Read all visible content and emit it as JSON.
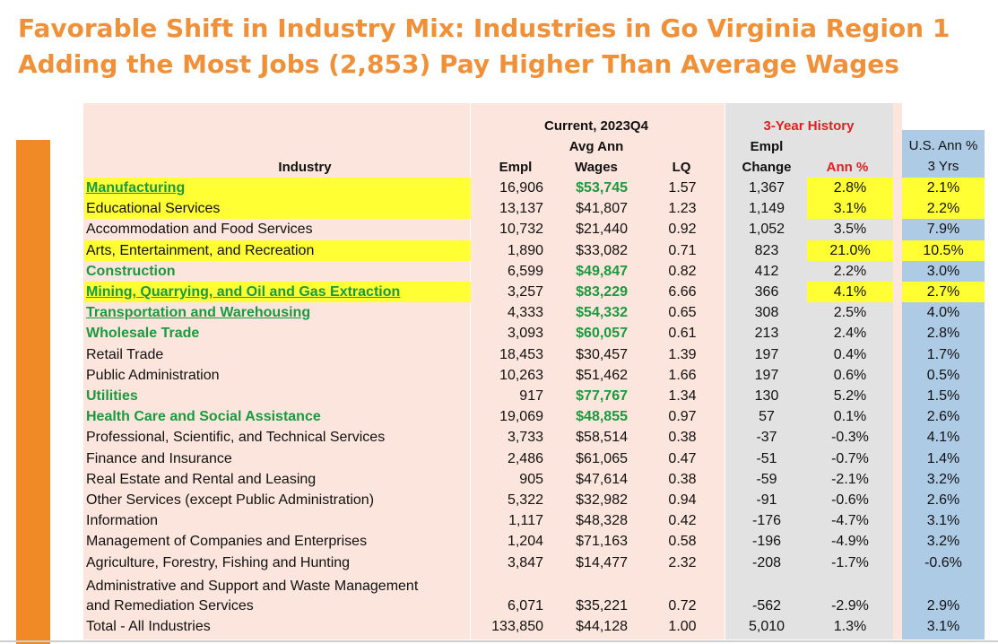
{
  "title": {
    "line1": "Favorable Shift in Industry Mix: Industries in Go Virginia Region 1",
    "line2": "Adding the Most Jobs (2,853) Pay Higher Than Average Wages"
  },
  "headers": {
    "current": "Current, 2023Q4",
    "history": "3-Year History",
    "industry": "Industry",
    "empl": "Empl",
    "avg_ann_1": "Avg Ann",
    "avg_ann_2": "Wages",
    "lq": "LQ",
    "empl_change_1": "Empl",
    "empl_change_2": "Change",
    "ann_pct": "Ann %",
    "us_1": "U.S. Ann %",
    "us_2": "3 Yrs"
  },
  "colors": {
    "title": "#f0913a",
    "highlight": "#ffff33",
    "green": "#1a9a3f",
    "red": "#e02020"
  },
  "rows": [
    {
      "industry": "Manufacturing",
      "empl": "16,906",
      "wages": "$53,745",
      "lq": "1.57",
      "change": "1,367",
      "ann": "2.8%",
      "us": "2.1%",
      "green_name": true,
      "underline": true,
      "hl_name": true,
      "green_wage": true,
      "hl_ann": true
    },
    {
      "industry": "Educational Services",
      "empl": "13,137",
      "wages": "$41,807",
      "lq": "1.23",
      "change": "1,149",
      "ann": "3.1%",
      "us": "2.2%",
      "green_name": false,
      "underline": false,
      "hl_name": true,
      "green_wage": false,
      "hl_ann": true
    },
    {
      "industry": "Accommodation and Food Services",
      "empl": "10,732",
      "wages": "$21,440",
      "lq": "0.92",
      "change": "1,052",
      "ann": "3.5%",
      "us": "7.9%",
      "green_name": false,
      "underline": false,
      "hl_name": false,
      "green_wage": false,
      "hl_ann": false
    },
    {
      "industry": "Arts, Entertainment, and Recreation",
      "empl": "1,890",
      "wages": "$33,082",
      "lq": "0.71",
      "change": "823",
      "ann": "21.0%",
      "us": "10.5%",
      "green_name": false,
      "underline": false,
      "hl_name": true,
      "green_wage": false,
      "hl_ann": true
    },
    {
      "industry": "Construction",
      "empl": "6,599",
      "wages": "$49,847",
      "lq": "0.82",
      "change": "412",
      "ann": "2.2%",
      "us": "3.0%",
      "green_name": true,
      "underline": false,
      "hl_name": false,
      "green_wage": true,
      "hl_ann": false
    },
    {
      "industry": "Mining, Quarrying, and Oil and Gas Extraction",
      "empl": "3,257",
      "wages": "$83,229",
      "lq": "6.66",
      "change": "366",
      "ann": "4.1%",
      "us": "2.7%",
      "green_name": true,
      "underline": true,
      "hl_name": true,
      "green_wage": true,
      "hl_ann": true
    },
    {
      "industry": "Transportation and Warehousing",
      "empl": "4,333",
      "wages": "$54,332",
      "lq": "0.65",
      "change": "308",
      "ann": "2.5%",
      "us": "4.0%",
      "green_name": true,
      "underline": true,
      "hl_name": false,
      "green_wage": true,
      "hl_ann": false
    },
    {
      "industry": "Wholesale Trade",
      "empl": "3,093",
      "wages": "$60,057",
      "lq": "0.61",
      "change": "213",
      "ann": "2.4%",
      "us": "2.8%",
      "green_name": true,
      "underline": false,
      "hl_name": false,
      "green_wage": true,
      "hl_ann": false
    },
    {
      "industry": "Retail Trade",
      "empl": "18,453",
      "wages": "$30,457",
      "lq": "1.39",
      "change": "197",
      "ann": "0.4%",
      "us": "1.7%",
      "green_name": false,
      "underline": false,
      "hl_name": false,
      "green_wage": false,
      "hl_ann": false
    },
    {
      "industry": "Public Administration",
      "empl": "10,263",
      "wages": "$51,462",
      "lq": "1.66",
      "change": "197",
      "ann": "0.6%",
      "us": "0.5%",
      "green_name": false,
      "underline": false,
      "hl_name": false,
      "green_wage": false,
      "hl_ann": false
    },
    {
      "industry": "Utilities",
      "empl": "917",
      "wages": "$77,767",
      "lq": "1.34",
      "change": "130",
      "ann": "5.2%",
      "us": "1.5%",
      "green_name": true,
      "underline": false,
      "hl_name": false,
      "green_wage": true,
      "hl_ann": false
    },
    {
      "industry": "Health Care and Social Assistance",
      "empl": "19,069",
      "wages": "$48,855",
      "lq": "0.97",
      "change": "57",
      "ann": "0.1%",
      "us": "2.6%",
      "green_name": true,
      "underline": false,
      "hl_name": false,
      "green_wage": true,
      "hl_ann": false
    },
    {
      "industry": "Professional, Scientific, and Technical Services",
      "empl": "3,733",
      "wages": "$58,514",
      "lq": "0.38",
      "change": "-37",
      "ann": "-0.3%",
      "us": "4.1%",
      "green_name": false,
      "underline": false,
      "hl_name": false,
      "green_wage": false,
      "hl_ann": false
    },
    {
      "industry": "Finance and Insurance",
      "empl": "2,486",
      "wages": "$61,065",
      "lq": "0.47",
      "change": "-51",
      "ann": "-0.7%",
      "us": "1.4%",
      "green_name": false,
      "underline": false,
      "hl_name": false,
      "green_wage": false,
      "hl_ann": false
    },
    {
      "industry": "Real Estate and Rental and Leasing",
      "empl": "905",
      "wages": "$47,614",
      "lq": "0.38",
      "change": "-59",
      "ann": "-2.1%",
      "us": "3.2%",
      "green_name": false,
      "underline": false,
      "hl_name": false,
      "green_wage": false,
      "hl_ann": false
    },
    {
      "industry": "Other Services (except Public Administration)",
      "empl": "5,322",
      "wages": "$32,982",
      "lq": "0.94",
      "change": "-91",
      "ann": "-0.6%",
      "us": "2.6%",
      "green_name": false,
      "underline": false,
      "hl_name": false,
      "green_wage": false,
      "hl_ann": false
    },
    {
      "industry": "Information",
      "empl": "1,117",
      "wages": "$48,328",
      "lq": "0.42",
      "change": "-176",
      "ann": "-4.7%",
      "us": "3.1%",
      "green_name": false,
      "underline": false,
      "hl_name": false,
      "green_wage": false,
      "hl_ann": false
    },
    {
      "industry": "Management of Companies and Enterprises",
      "empl": "1,204",
      "wages": "$71,163",
      "lq": "0.58",
      "change": "-196",
      "ann": "-4.9%",
      "us": "3.2%",
      "green_name": false,
      "underline": false,
      "hl_name": false,
      "green_wage": false,
      "hl_ann": false
    },
    {
      "industry": "Agriculture, Forestry, Fishing and Hunting",
      "empl": "3,847",
      "wages": "$14,477",
      "lq": "2.32",
      "change": "-208",
      "ann": "-1.7%",
      "us": "-0.6%",
      "green_name": false,
      "underline": false,
      "hl_name": false,
      "green_wage": false,
      "hl_ann": false
    }
  ],
  "admin_row": {
    "industry_1": "Administrative and Support and Waste Management",
    "industry_2": "and Remediation Services",
    "empl": "6,071",
    "wages": "$35,221",
    "lq": "0.72",
    "change": "-562",
    "ann": "-2.9%",
    "us": "2.9%"
  },
  "total_row": {
    "industry": "Total - All Industries",
    "empl": "133,850",
    "wages": "$44,128",
    "lq": "1.00",
    "change": "5,010",
    "ann": "1.3%",
    "us": "3.1%"
  }
}
